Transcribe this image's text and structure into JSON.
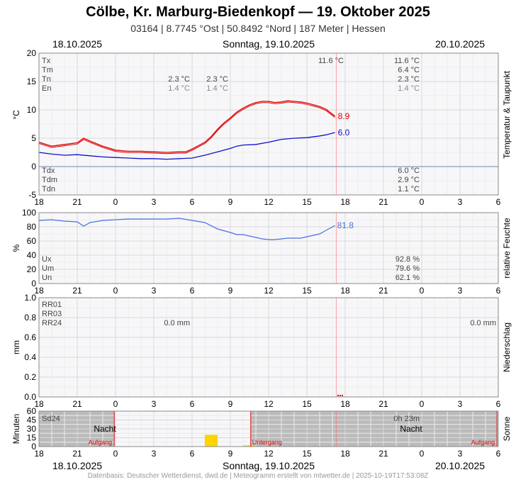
{
  "header": {
    "title": "Cölbe, Kr. Marburg-Biedenkopf  —  19. Oktober 2025",
    "subtitle": "03164  |  8.7745 °Ost  |  50.8492 °Nord  |  187 Meter  |  Hessen",
    "date_left": "18.10.2025",
    "date_center": "Sonntag, 19.10.2025",
    "date_right": "20.10.2025"
  },
  "footer": {
    "credit": "Datenbasis: Deutscher Wetterdienst, dwd.de | Meteogramm erstellt von mtwetter.de | 2025-10-19T17:53:08Z"
  },
  "colors": {
    "temperature": "#e00000",
    "dewpoint": "#1010cc",
    "humidity": "#4a6fdf",
    "sunshine": "#ffd400",
    "night": "#bbbbbb",
    "now_marker": "#ff6666"
  },
  "x_axis": {
    "tick_labels": [
      "18",
      "21",
      "0",
      "3",
      "6",
      "9",
      "12",
      "15",
      "18",
      "21",
      "0",
      "3",
      "6"
    ]
  },
  "chart_data": [
    {
      "type": "line",
      "id": "temperature",
      "title": "Temperatur & Taupunkt",
      "ylabel": "°C",
      "x_unit": "hours since 18.10.2025 18:00",
      "xlim": [
        0,
        36
      ],
      "ylim": [
        -5,
        20
      ],
      "y_ticks": [
        "20",
        "15",
        "10",
        "5",
        "0",
        "-5"
      ],
      "series": [
        {
          "name": "Temperatur",
          "color": "#e00000",
          "x": [
            0,
            1,
            2,
            3,
            3.5,
            4,
            5,
            6,
            7,
            8,
            9,
            10,
            11,
            11.5,
            12,
            12.5,
            13,
            13.5,
            14,
            14.5,
            15,
            15.5,
            16,
            16.5,
            17,
            17.5,
            18,
            18.5,
            19,
            19.5,
            20,
            20.5,
            21,
            21.5,
            22,
            22.5,
            22.9,
            23.2
          ],
          "values": [
            4.3,
            3.6,
            3.9,
            4.2,
            5.0,
            4.5,
            3.6,
            2.9,
            2.7,
            2.7,
            2.6,
            2.5,
            2.6,
            2.6,
            3.1,
            3.7,
            4.3,
            5.3,
            6.6,
            7.7,
            8.6,
            9.6,
            10.3,
            10.9,
            11.3,
            11.5,
            11.5,
            11.3,
            11.4,
            11.6,
            11.5,
            11.4,
            11.2,
            10.9,
            10.6,
            10.1,
            9.4,
            8.9
          ],
          "end_label": "8.9"
        },
        {
          "name": "Taupunkt",
          "color": "#1010cc",
          "x": [
            0,
            1,
            2,
            3,
            4,
            5,
            6,
            7,
            8,
            9,
            10,
            11,
            12,
            13,
            14,
            15,
            15.5,
            16,
            17,
            18,
            19,
            20,
            21,
            22,
            22.5,
            23.2
          ],
          "values": [
            2.5,
            2.2,
            2.0,
            2.1,
            1.9,
            1.7,
            1.6,
            1.5,
            1.4,
            1.4,
            1.3,
            1.4,
            1.5,
            2.0,
            2.6,
            3.2,
            3.6,
            3.8,
            3.9,
            4.3,
            4.8,
            5.0,
            5.1,
            5.4,
            5.6,
            6.0
          ],
          "end_label": "6.0"
        }
      ],
      "stats_left": [
        {
          "label": "Tx",
          "value": "11.6 °C"
        },
        {
          "label": "Tm",
          "value": ""
        },
        {
          "label": "Tn",
          "value": "2.3 °C",
          "value2": "2.3 °C"
        },
        {
          "label": "En",
          "value": "1.4 °C",
          "value2": "1.4 °C"
        }
      ],
      "stats_right": [
        "11.6 °C",
        "6.4 °C",
        "2.3 °C",
        "1.4 °C"
      ],
      "stats_bottom": [
        {
          "label": "Tdx",
          "value": "6.0 °C"
        },
        {
          "label": "Tdm",
          "value": "2.9 °C"
        },
        {
          "label": "Tdn",
          "value": "1.1 °C"
        }
      ]
    },
    {
      "type": "line",
      "id": "humidity",
      "title": "relative Feuchte",
      "ylabel": "%",
      "xlim": [
        0,
        36
      ],
      "ylim": [
        0,
        100
      ],
      "y_ticks": [
        "100",
        "80",
        "60",
        "40",
        "20",
        "0"
      ],
      "series": [
        {
          "name": "relative Feuchte",
          "color": "#4a6fdf",
          "x": [
            0,
            1,
            2,
            3,
            3.5,
            4,
            5,
            6,
            7,
            8,
            9,
            10,
            11,
            12,
            13,
            14,
            15,
            15.5,
            16,
            16.5,
            17,
            17.5,
            18,
            18.5,
            19,
            19.5,
            20,
            20.5,
            21,
            22,
            22.5,
            23.2
          ],
          "values": [
            89,
            90,
            88,
            87,
            81,
            86,
            89,
            90,
            91,
            91,
            91,
            91,
            92,
            89,
            86,
            77,
            72,
            69,
            69,
            67,
            65,
            63,
            62,
            62,
            63,
            64,
            64,
            64,
            66,
            70,
            75,
            81.8
          ],
          "end_label": "81.8"
        }
      ],
      "stats": [
        {
          "label": "Ux",
          "value": "92.8 %"
        },
        {
          "label": "Um",
          "value": "79.6 %"
        },
        {
          "label": "Un",
          "value": "62.1 %"
        }
      ]
    },
    {
      "type": "bar",
      "id": "precipitation",
      "title": "Niederschlag",
      "ylabel": "mm",
      "xlim": [
        0,
        36
      ],
      "ylim": [
        0,
        1
      ],
      "y_ticks": [
        "1.0",
        "0.8",
        "0.6",
        "0.4",
        "0.2",
        "0.0"
      ],
      "labels": [
        "RR01",
        "RR03",
        "RR24"
      ],
      "rr24_values": [
        "0.0 mm",
        "0.0 mm"
      ]
    },
    {
      "type": "bar",
      "id": "sunshine",
      "title": "Sonne",
      "ylabel": "Minuten",
      "xlim": [
        0,
        36
      ],
      "ylim": [
        0,
        60
      ],
      "y_ticks": [
        "60",
        "45",
        "30",
        "15",
        "0"
      ],
      "bars": [
        {
          "x": 13.5,
          "minutes": 20
        },
        {
          "x": 16.5,
          "minutes": 2
        }
      ],
      "sd24_label": "Sd24",
      "sd24_value": "0h 23m",
      "night_label": "Nacht",
      "sunrise_label": "Aufgang",
      "sunset_label": "Untergang",
      "night_periods": [
        [
          0,
          5.9
        ],
        [
          16.6,
          35.9
        ]
      ],
      "sunrise_times": [
        5.9,
        35.9
      ],
      "sunset_times": [
        16.6
      ]
    }
  ],
  "now_x": 23.3
}
